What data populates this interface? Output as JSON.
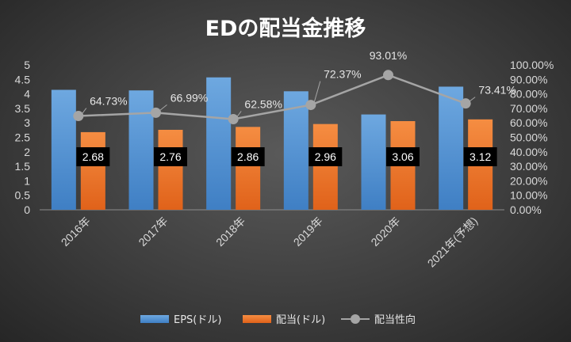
{
  "chart_data": {
    "type": "bar",
    "title": "EDの配当金推移",
    "categories": [
      "2016年",
      "2017年",
      "2018年",
      "2019年",
      "2020年",
      "2021年(予想)"
    ],
    "series": [
      {
        "name": "EPS(ドル)",
        "kind": "bar",
        "axis": "left",
        "color": "#5b9bd5",
        "values": [
          4.14,
          4.12,
          4.57,
          4.09,
          3.29,
          4.25
        ]
      },
      {
        "name": "配当(ドル)",
        "kind": "bar",
        "axis": "left",
        "color": "#ed7d31",
        "values": [
          2.68,
          2.76,
          2.86,
          2.96,
          3.06,
          3.12
        ],
        "data_labels": [
          "2.68",
          "2.76",
          "2.86",
          "2.96",
          "3.06",
          "3.12"
        ]
      },
      {
        "name": "配当性向",
        "kind": "line",
        "axis": "right",
        "color": "#a5a5a5",
        "values": [
          64.73,
          66.99,
          62.58,
          72.37,
          93.01,
          73.41
        ],
        "data_labels": [
          "64.73%",
          "66.99%",
          "62.58%",
          "72.37%",
          "93.01%",
          "73.41%"
        ]
      }
    ],
    "y_left": {
      "range": [
        0,
        5
      ],
      "ticks": [
        "0",
        "0.5",
        "1",
        "1.5",
        "2",
        "2.5",
        "3",
        "3.5",
        "4",
        "4.5",
        "5"
      ]
    },
    "y_right": {
      "range": [
        0,
        100
      ],
      "ticks": [
        "0.00%",
        "10.00%",
        "20.00%",
        "30.00%",
        "40.00%",
        "50.00%",
        "60.00%",
        "70.00%",
        "80.00%",
        "90.00%",
        "100.00%"
      ]
    },
    "grid": false,
    "legend_position": "bottom"
  }
}
